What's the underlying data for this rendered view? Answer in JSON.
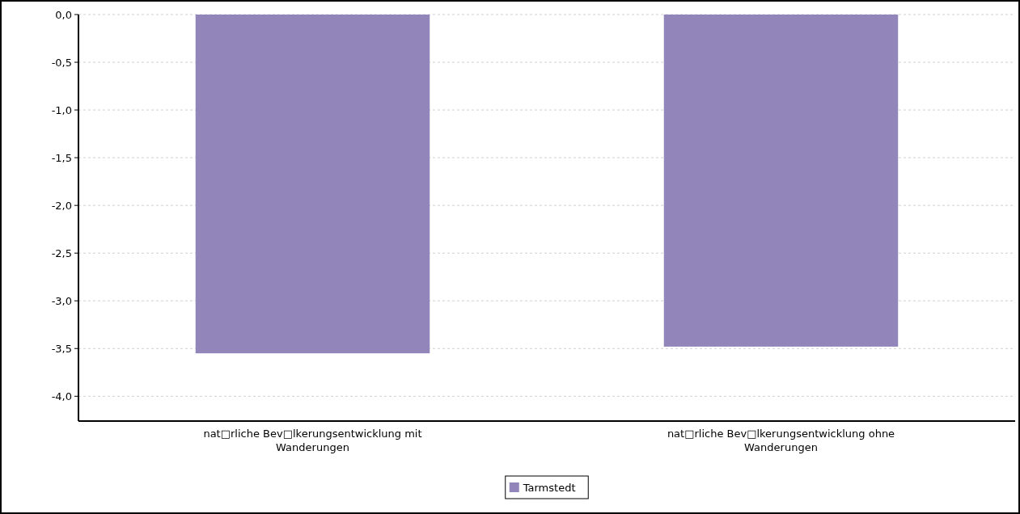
{
  "chart_data": {
    "type": "bar",
    "categories": [
      "nat□rliche Bev□lkerungsentwicklung mit Wanderungen",
      "nat□rliche Bev□lkerungsentwicklung ohne Wanderungen"
    ],
    "series": [
      {
        "name": "Tarmstedt",
        "color": "#9185ba",
        "values": [
          -3.55,
          -3.48
        ]
      }
    ],
    "ylim": [
      -4.26,
      0
    ],
    "yticks": [
      {
        "value": 0,
        "label": "0,0"
      },
      {
        "value": -0.5,
        "label": "-0,5"
      },
      {
        "value": -1,
        "label": "-1,0"
      },
      {
        "value": -1.5,
        "label": "-1,5"
      },
      {
        "value": -2,
        "label": "-2,0"
      },
      {
        "value": -2.5,
        "label": "-2,5"
      },
      {
        "value": -3,
        "label": "-3,0"
      },
      {
        "value": -3.5,
        "label": "-3,5"
      },
      {
        "value": -4,
        "label": "-4,0"
      }
    ],
    "grid": "y",
    "legend": "bottom"
  }
}
